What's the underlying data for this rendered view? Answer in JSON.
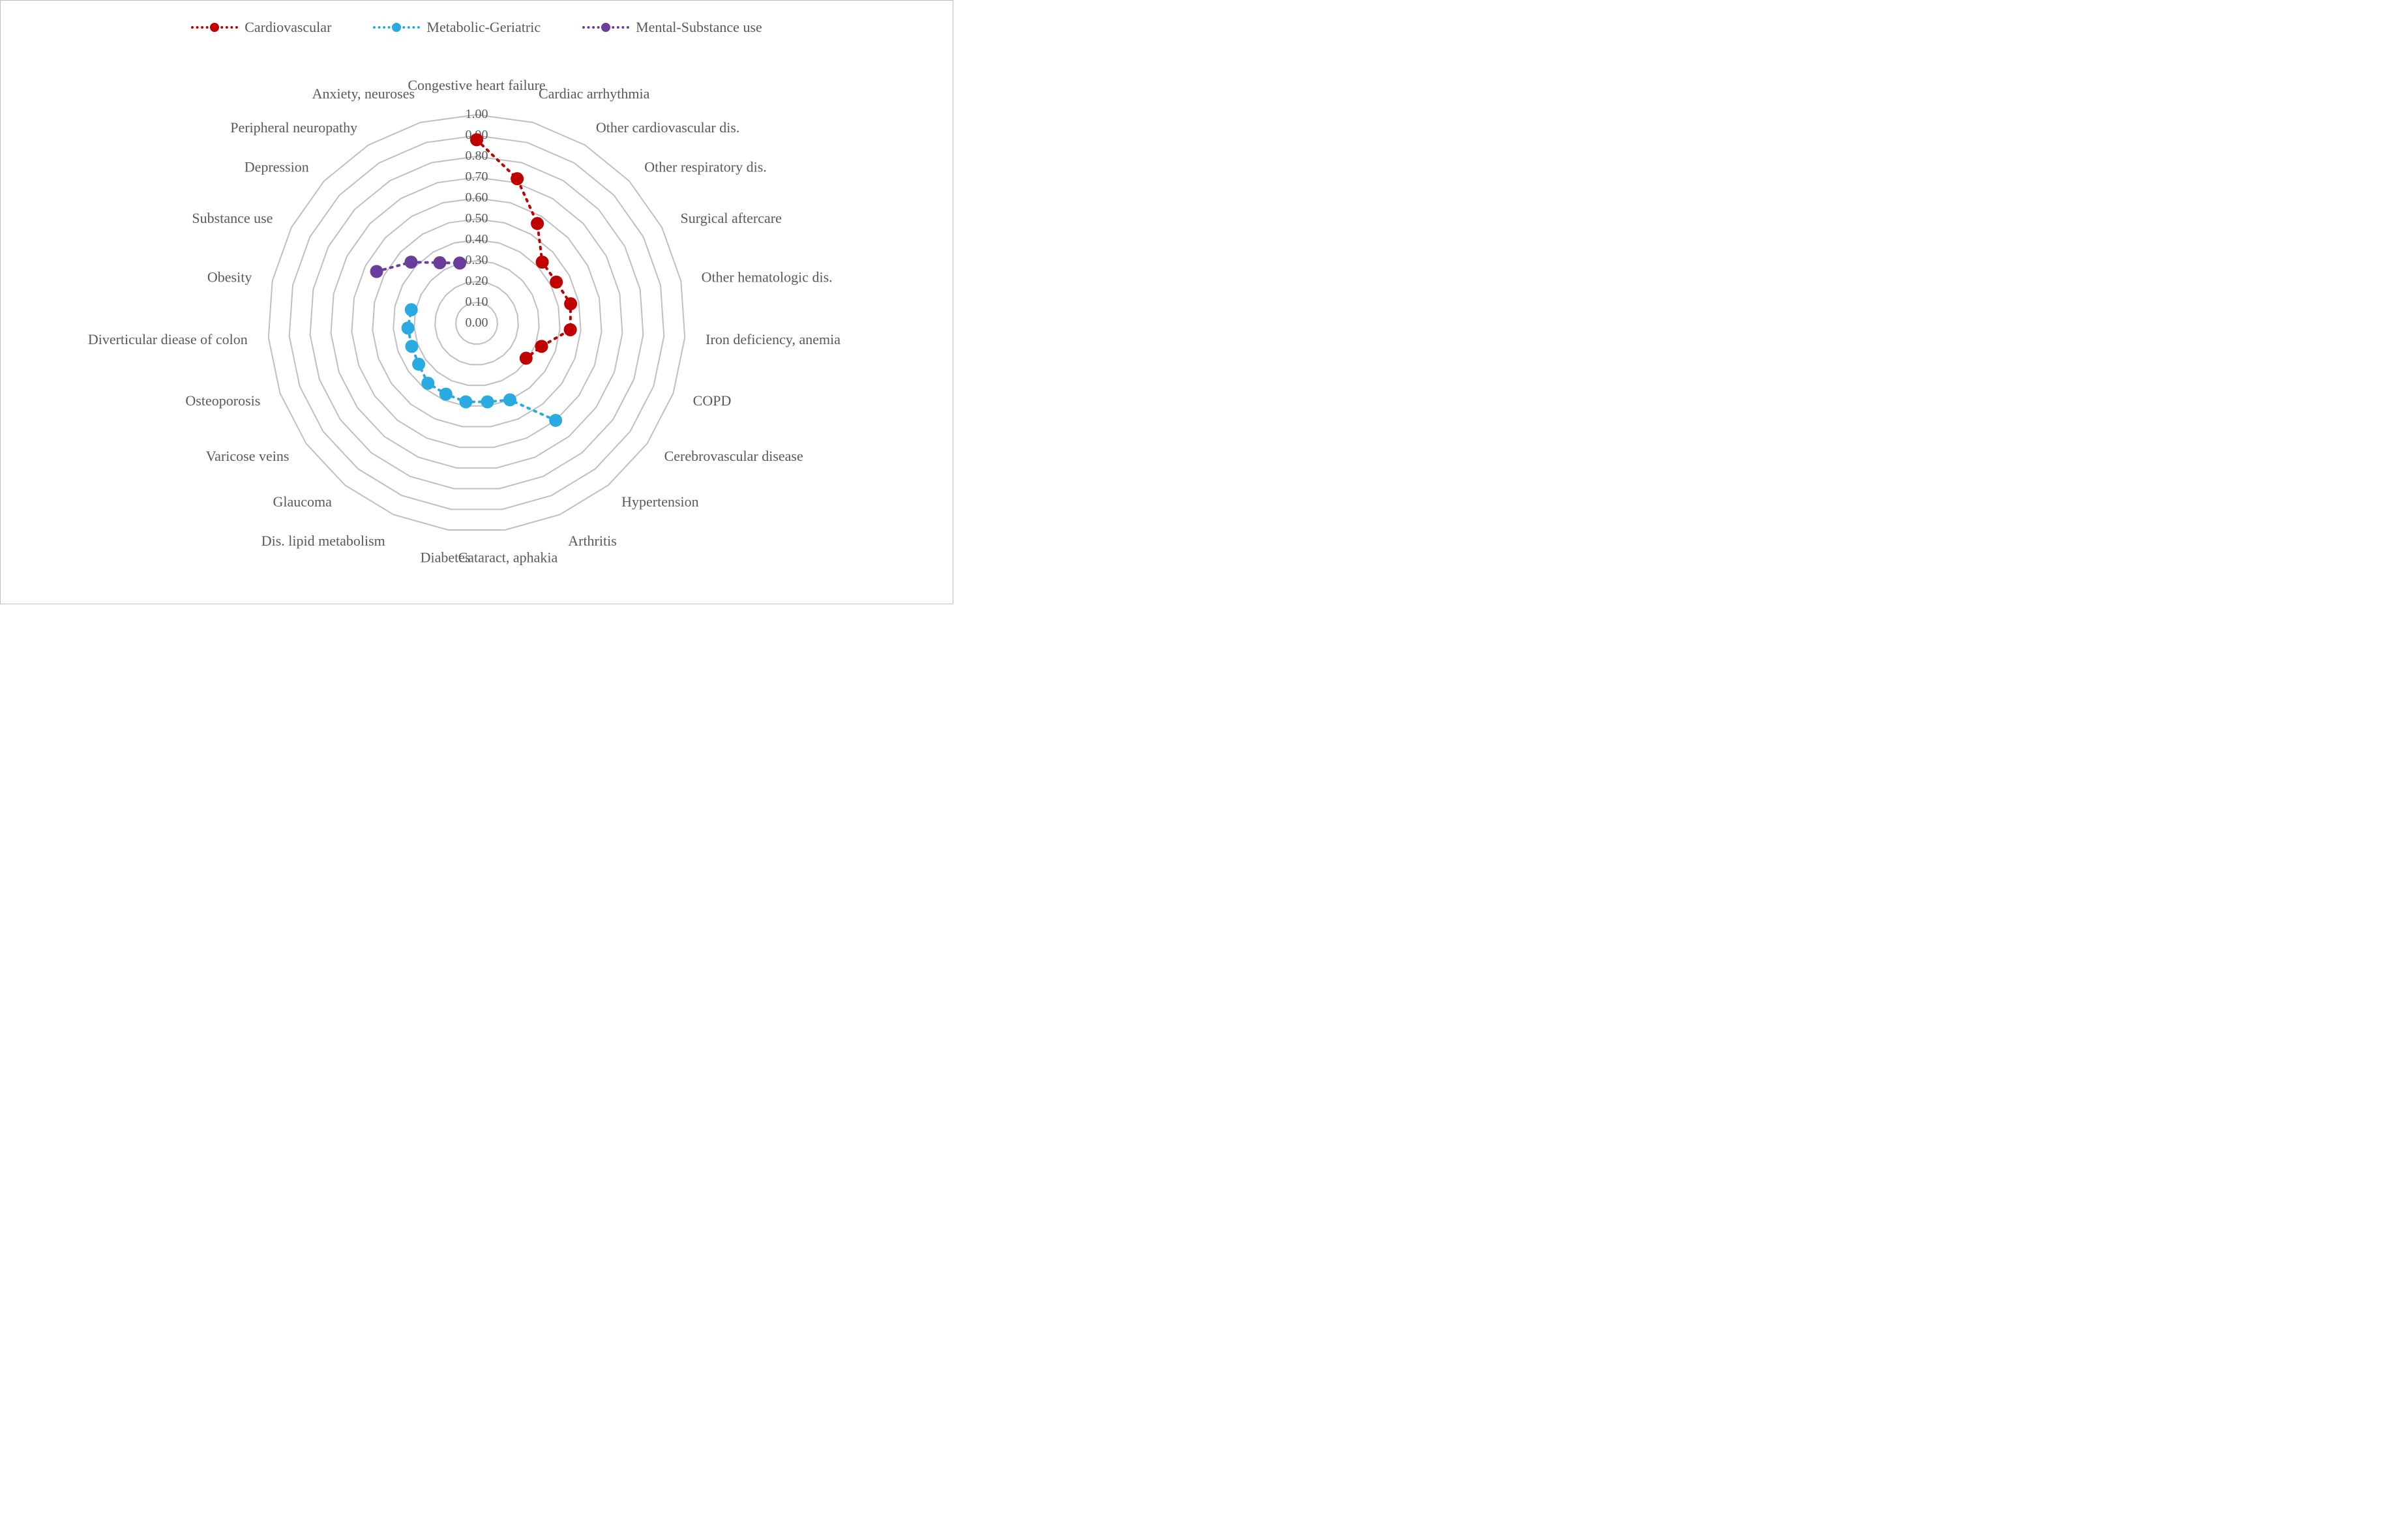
{
  "chart": {
    "type": "radar",
    "background_color": "#ffffff",
    "border_color": "#bfbfbf",
    "grid_color": "#bfbfbf",
    "grid_stroke_width": 2,
    "text_color": "#595959",
    "axis_label_fontsize": 22,
    "tick_label_fontsize": 20,
    "legend_fontsize": 22,
    "marker_radius": 10,
    "line_dash": "3 8",
    "line_width": 4,
    "radial_min": 0.0,
    "radial_max": 1.0,
    "radial_tick_step": 0.1,
    "categories": [
      "Congestive heart failure",
      "Cardiac arrhythmia",
      "Other cardiovascular dis.",
      "Other respiratory dis.",
      "Surgical aftercare",
      "Other hematologic dis.",
      "Iron deficiency, anemia",
      "COPD",
      "Cerebrovascular disease",
      "Hypertension",
      "Arthritis",
      "Cataract, aphakia",
      "Diabetes",
      "Dis. lipid metabolism",
      "Glaucoma",
      "Varicose veins",
      "Osteoporosis",
      "Diverticular diease of colon",
      "Obesity",
      "Substance use",
      "Depression",
      "Peripheral neuropathy",
      "Anxiety, neuroses"
    ],
    "series": [
      {
        "name": "Cardiovascular",
        "color": "#c00000",
        "legend_label": "Cardiovascular",
        "values": [
          0.88,
          0.72,
          0.56,
          0.43,
          0.43,
          0.46,
          0.45,
          0.33,
          0.29,
          null,
          null,
          null,
          null,
          null,
          null,
          null,
          null,
          null,
          null,
          null,
          null,
          null,
          null
        ]
      },
      {
        "name": "Metabolic-Geriatric",
        "color": "#29abe2",
        "legend_label": "Metabolic-Geriatric",
        "values": [
          null,
          null,
          null,
          null,
          null,
          null,
          null,
          null,
          null,
          0.6,
          0.4,
          0.38,
          0.38,
          0.37,
          0.37,
          0.34,
          0.33,
          0.33,
          0.32,
          null,
          null,
          null,
          null
        ]
      },
      {
        "name": "Mental-Substance use",
        "color": "#6a3d9a",
        "legend_label": "Mental-Substance use",
        "values": [
          null,
          null,
          null,
          null,
          null,
          null,
          null,
          null,
          null,
          null,
          null,
          null,
          null,
          null,
          null,
          null,
          null,
          null,
          null,
          0.54,
          0.43,
          0.34,
          0.3
        ]
      }
    ]
  }
}
